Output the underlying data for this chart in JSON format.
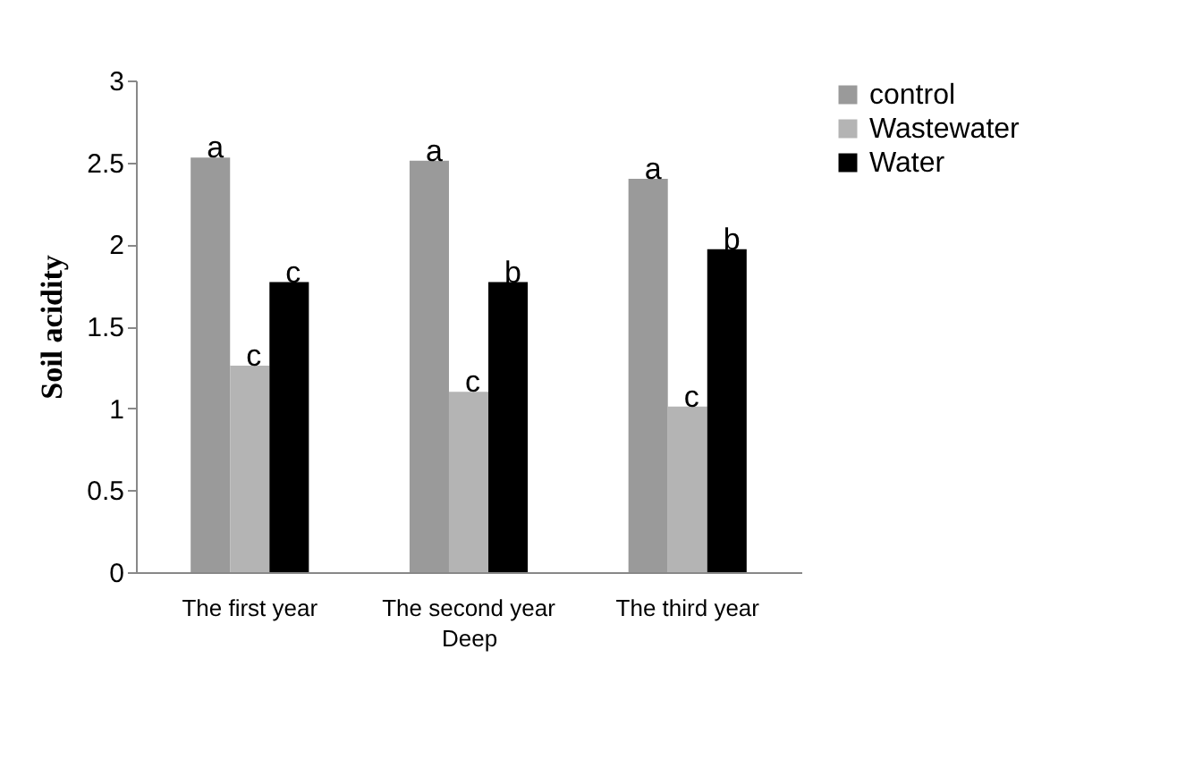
{
  "chart_data": {
    "type": "bar",
    "xlabel": "Deep",
    "ylabel": "Soil acidity",
    "categories": [
      "The first year",
      "The second year",
      "The third year"
    ],
    "series": [
      {
        "name": "control",
        "color": "#9a9a9a",
        "values": [
          2.53,
          2.51,
          2.4
        ],
        "value_labels": [
          "a",
          "a",
          "a"
        ]
      },
      {
        "name": "Wastewater",
        "color": "#b4b4b4",
        "values": [
          1.26,
          1.1,
          1.01
        ],
        "value_labels": [
          "c",
          "c",
          "c"
        ]
      },
      {
        "name": "Water",
        "color": "#000000",
        "values": [
          1.77,
          1.77,
          1.97
        ],
        "value_labels": [
          "c",
          "b",
          "b"
        ]
      }
    ],
    "ylim": [
      0,
      3
    ],
    "yticks": [
      0,
      0.5,
      1,
      1.5,
      2,
      2.5,
      3
    ],
    "grid": false,
    "legend": "right"
  }
}
